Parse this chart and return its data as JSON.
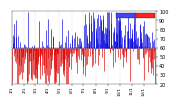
{
  "background_color": "#ffffff",
  "plot_bg_color": "#ffffff",
  "bar_above_color": "#0000dd",
  "bar_below_color": "#dd0000",
  "legend_blue_color": "#4444ff",
  "legend_red_color": "#ff2222",
  "ylim": [
    20,
    100
  ],
  "yticks": [
    20,
    30,
    40,
    50,
    60,
    70,
    80,
    90,
    100
  ],
  "ylabel_fontsize": 3.5,
  "xlabel_fontsize": 3.0,
  "num_days": 365,
  "ref_line": 60,
  "seed": 17
}
